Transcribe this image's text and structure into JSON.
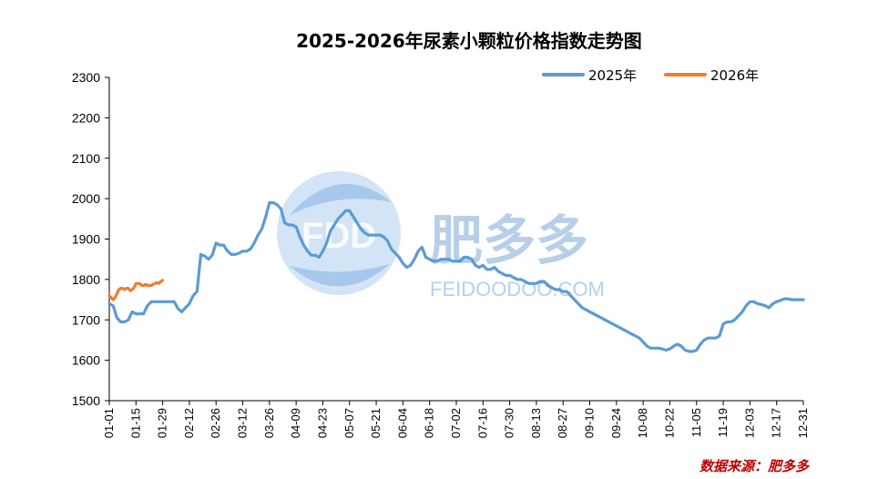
{
  "chart_data": {
    "type": "line",
    "title": "2025-2026年尿素小颗粒价格指数走势图",
    "xlabel": "",
    "ylabel": "",
    "ylim": [
      1500,
      2300
    ],
    "yticks": [
      1500,
      1600,
      1700,
      1800,
      1900,
      2000,
      2100,
      2200,
      2300
    ],
    "xticks": [
      "01-01",
      "01-15",
      "01-29",
      "02-12",
      "02-26",
      "03-12",
      "03-26",
      "04-09",
      "04-23",
      "05-07",
      "05-21",
      "06-04",
      "06-18",
      "07-02",
      "07-16",
      "07-30",
      "08-13",
      "08-27",
      "09-10",
      "09-24",
      "10-08",
      "10-22",
      "11-05",
      "11-19",
      "12-03",
      "12-17",
      "12-31"
    ],
    "legend_position": "top-right",
    "grid": false,
    "series": [
      {
        "name": "2025年",
        "color": "#5b9bd5",
        "points": [
          [
            "01-01",
            1740
          ],
          [
            "01-03",
            1735
          ],
          [
            "01-05",
            1705
          ],
          [
            "01-07",
            1695
          ],
          [
            "01-09",
            1695
          ],
          [
            "01-11",
            1700
          ],
          [
            "01-13",
            1720
          ],
          [
            "01-15",
            1715
          ],
          [
            "01-17",
            1715
          ],
          [
            "01-19",
            1715
          ],
          [
            "01-21",
            1735
          ],
          [
            "01-23",
            1745
          ],
          [
            "01-25",
            1745
          ],
          [
            "01-29",
            1745
          ],
          [
            "02-02",
            1745
          ],
          [
            "02-04",
            1745
          ],
          [
            "02-06",
            1728
          ],
          [
            "02-08",
            1720
          ],
          [
            "02-10",
            1730
          ],
          [
            "02-12",
            1740
          ],
          [
            "02-14",
            1760
          ],
          [
            "02-16",
            1770
          ],
          [
            "02-18",
            1862
          ],
          [
            "02-20",
            1858
          ],
          [
            "02-22",
            1850
          ],
          [
            "02-24",
            1860
          ],
          [
            "02-26",
            1890
          ],
          [
            "02-28",
            1885
          ],
          [
            "03-02",
            1885
          ],
          [
            "03-04",
            1870
          ],
          [
            "03-06",
            1862
          ],
          [
            "03-08",
            1862
          ],
          [
            "03-10",
            1865
          ],
          [
            "03-12",
            1870
          ],
          [
            "03-14",
            1870
          ],
          [
            "03-16",
            1875
          ],
          [
            "03-18",
            1890
          ],
          [
            "03-20",
            1910
          ],
          [
            "03-22",
            1925
          ],
          [
            "03-24",
            1955
          ],
          [
            "03-26",
            1990
          ],
          [
            "03-28",
            1990
          ],
          [
            "03-30",
            1985
          ],
          [
            "04-01",
            1975
          ],
          [
            "04-03",
            1940
          ],
          [
            "04-05",
            1935
          ],
          [
            "04-07",
            1935
          ],
          [
            "04-09",
            1930
          ],
          [
            "04-11",
            1905
          ],
          [
            "04-13",
            1885
          ],
          [
            "04-15",
            1870
          ],
          [
            "04-17",
            1860
          ],
          [
            "04-19",
            1860
          ],
          [
            "04-21",
            1855
          ],
          [
            "04-23",
            1870
          ],
          [
            "04-25",
            1890
          ],
          [
            "04-27",
            1920
          ],
          [
            "04-29",
            1935
          ],
          [
            "05-01",
            1950
          ],
          [
            "05-03",
            1960
          ],
          [
            "05-05",
            1970
          ],
          [
            "05-07",
            1970
          ],
          [
            "05-09",
            1955
          ],
          [
            "05-11",
            1940
          ],
          [
            "05-13",
            1925
          ],
          [
            "05-15",
            1915
          ],
          [
            "05-17",
            1910
          ],
          [
            "05-19",
            1910
          ],
          [
            "05-21",
            1910
          ],
          [
            "05-23",
            1910
          ],
          [
            "05-25",
            1905
          ],
          [
            "05-27",
            1895
          ],
          [
            "05-29",
            1875
          ],
          [
            "05-31",
            1865
          ],
          [
            "06-02",
            1855
          ],
          [
            "06-04",
            1840
          ],
          [
            "06-06",
            1830
          ],
          [
            "06-08",
            1835
          ],
          [
            "06-10",
            1850
          ],
          [
            "06-12",
            1870
          ],
          [
            "06-14",
            1880
          ],
          [
            "06-16",
            1855
          ],
          [
            "06-18",
            1850
          ],
          [
            "06-20",
            1845
          ],
          [
            "06-22",
            1845
          ],
          [
            "06-24",
            1850
          ],
          [
            "06-26",
            1850
          ],
          [
            "06-28",
            1850
          ],
          [
            "06-30",
            1845
          ],
          [
            "07-02",
            1845
          ],
          [
            "07-04",
            1845
          ],
          [
            "07-06",
            1855
          ],
          [
            "07-08",
            1855
          ],
          [
            "07-10",
            1850
          ],
          [
            "07-12",
            1835
          ],
          [
            "07-14",
            1830
          ],
          [
            "07-16",
            1835
          ],
          [
            "07-18",
            1825
          ],
          [
            "07-20",
            1825
          ],
          [
            "07-22",
            1830
          ],
          [
            "07-24",
            1820
          ],
          [
            "07-26",
            1815
          ],
          [
            "07-28",
            1810
          ],
          [
            "07-30",
            1810
          ],
          [
            "08-01",
            1805
          ],
          [
            "08-03",
            1800
          ],
          [
            "08-05",
            1800
          ],
          [
            "08-07",
            1795
          ],
          [
            "08-09",
            1790
          ],
          [
            "08-11",
            1790
          ],
          [
            "08-13",
            1790
          ],
          [
            "08-15",
            1795
          ],
          [
            "08-17",
            1795
          ],
          [
            "08-19",
            1785
          ],
          [
            "08-21",
            1780
          ],
          [
            "08-23",
            1775
          ],
          [
            "08-25",
            1775
          ],
          [
            "08-27",
            1770
          ],
          [
            "08-29",
            1770
          ],
          [
            "08-31",
            1760
          ],
          [
            "09-02",
            1750
          ],
          [
            "09-04",
            1740
          ],
          [
            "09-06",
            1730
          ],
          [
            "09-08",
            1725
          ],
          [
            "09-10",
            1720
          ],
          [
            "09-12",
            1715
          ],
          [
            "09-14",
            1710
          ],
          [
            "09-16",
            1705
          ],
          [
            "09-18",
            1700
          ],
          [
            "09-20",
            1695
          ],
          [
            "09-22",
            1690
          ],
          [
            "09-24",
            1685
          ],
          [
            "09-26",
            1680
          ],
          [
            "09-28",
            1675
          ],
          [
            "09-30",
            1670
          ],
          [
            "10-02",
            1665
          ],
          [
            "10-04",
            1660
          ],
          [
            "10-06",
            1655
          ],
          [
            "10-08",
            1645
          ],
          [
            "10-10",
            1635
          ],
          [
            "10-12",
            1630
          ],
          [
            "10-14",
            1630
          ],
          [
            "10-16",
            1630
          ],
          [
            "10-18",
            1628
          ],
          [
            "10-20",
            1625
          ],
          [
            "10-22",
            1628
          ],
          [
            "10-24",
            1635
          ],
          [
            "10-26",
            1640
          ],
          [
            "10-28",
            1635
          ],
          [
            "10-30",
            1625
          ],
          [
            "11-01",
            1622
          ],
          [
            "11-03",
            1622
          ],
          [
            "11-05",
            1625
          ],
          [
            "11-07",
            1640
          ],
          [
            "11-09",
            1650
          ],
          [
            "11-11",
            1655
          ],
          [
            "11-13",
            1655
          ],
          [
            "11-15",
            1655
          ],
          [
            "11-17",
            1660
          ],
          [
            "11-19",
            1690
          ],
          [
            "11-21",
            1695
          ],
          [
            "11-23",
            1695
          ],
          [
            "11-25",
            1700
          ],
          [
            "11-27",
            1710
          ],
          [
            "11-29",
            1720
          ],
          [
            "12-01",
            1735
          ],
          [
            "12-03",
            1745
          ],
          [
            "12-05",
            1745
          ],
          [
            "12-07",
            1740
          ],
          [
            "12-09",
            1738
          ],
          [
            "12-11",
            1735
          ],
          [
            "12-13",
            1730
          ],
          [
            "12-15",
            1740
          ],
          [
            "12-17",
            1745
          ],
          [
            "12-19",
            1748
          ],
          [
            "12-21",
            1752
          ],
          [
            "12-23",
            1752
          ],
          [
            "12-25",
            1750
          ],
          [
            "12-27",
            1750
          ],
          [
            "12-31",
            1750
          ]
        ]
      },
      {
        "name": "2026年",
        "color": "#ed7d31",
        "points": [
          [
            "01-01",
            1760
          ],
          [
            "01-02",
            1755
          ],
          [
            "01-03",
            1750
          ],
          [
            "01-04",
            1755
          ],
          [
            "01-05",
            1765
          ],
          [
            "01-06",
            1775
          ],
          [
            "01-07",
            1778
          ],
          [
            "01-08",
            1778
          ],
          [
            "01-09",
            1775
          ],
          [
            "01-10",
            1778
          ],
          [
            "01-11",
            1778
          ],
          [
            "01-12",
            1772
          ],
          [
            "01-13",
            1775
          ],
          [
            "01-14",
            1780
          ],
          [
            "01-15",
            1790
          ],
          [
            "01-16",
            1790
          ],
          [
            "01-17",
            1790
          ],
          [
            "01-18",
            1785
          ],
          [
            "01-19",
            1785
          ],
          [
            "01-20",
            1788
          ],
          [
            "01-21",
            1785
          ],
          [
            "01-22",
            1785
          ],
          [
            "01-23",
            1785
          ],
          [
            "01-24",
            1788
          ],
          [
            "01-25",
            1790
          ],
          [
            "01-26",
            1792
          ],
          [
            "01-27",
            1790
          ],
          [
            "01-28",
            1795
          ],
          [
            "01-29",
            1798
          ]
        ]
      }
    ]
  },
  "watermark": {
    "logo_text": "FDD",
    "brand_cn": "肥多多",
    "brand_en": "FEIDOODOO.COM"
  },
  "source_label": "数据来源：肥多多"
}
